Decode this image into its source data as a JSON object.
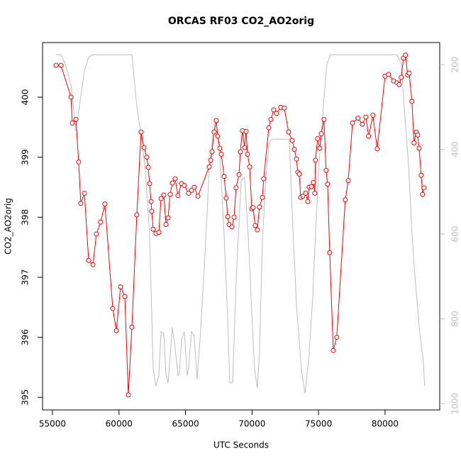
{
  "chart_data": {
    "type": "line",
    "title": "ORCAS RF03 CO2_AO2orig",
    "x_label": "UTC Seconds",
    "y_label": "CO2_AO2orig",
    "xlim": [
      54254,
      84110
    ],
    "xticks": [
      55000,
      60000,
      65000,
      70000,
      75000,
      80000
    ],
    "ylim": [
      394.79,
      400.91
    ],
    "yticks": [
      395,
      396,
      397,
      398,
      399,
      400
    ],
    "y2lim": [
      1015,
      148
    ],
    "y2ticks": [
      200,
      400,
      600,
      800,
      1000
    ],
    "series": [
      {
        "color": "#ff0000",
        "marker": "circle",
        "x": [
          55270,
          55640,
          56390,
          56490,
          56760,
          56970,
          57130,
          57400,
          57720,
          58040,
          58300,
          58620,
          58940,
          59530,
          59800,
          60120,
          60440,
          60700,
          60970,
          61340,
          61660,
          61880,
          62090,
          62200,
          62300,
          62410,
          62460,
          62570,
          62780,
          63000,
          63160,
          63370,
          63530,
          63690,
          63850,
          64010,
          64220,
          64430,
          64700,
          64910,
          65230,
          65450,
          65660,
          65930,
          66780,
          66890,
          66990,
          67150,
          67310,
          67420,
          67580,
          67690,
          67900,
          68060,
          68170,
          68270,
          68490,
          68650,
          68800,
          69020,
          69120,
          69280,
          69440,
          69550,
          69660,
          69820,
          69980,
          70080,
          70240,
          70400,
          70560,
          70780,
          70880,
          71260,
          71420,
          71630,
          71840,
          72160,
          72430,
          72750,
          73020,
          73180,
          73340,
          73440,
          73550,
          73660,
          73820,
          74030,
          74190,
          74300,
          74460,
          74610,
          74720,
          74770,
          74930,
          75090,
          75200,
          75410,
          75570,
          75680,
          75840,
          76110,
          76370,
          77010,
          77230,
          77550,
          77970,
          78290,
          78560,
          78770,
          79090,
          79410,
          80000,
          80260,
          80640,
          80900,
          81060,
          81220,
          81380,
          81540,
          81700,
          81810,
          82020,
          82180,
          82340,
          82450,
          82560,
          82720,
          82820,
          82930
        ],
        "values": [
          400.53,
          400.53,
          400.0,
          399.57,
          399.63,
          398.92,
          398.23,
          398.4,
          397.28,
          397.21,
          397.72,
          397.92,
          398.22,
          396.48,
          396.11,
          396.84,
          396.68,
          395.04,
          396.17,
          398.04,
          399.42,
          399.16,
          399.0,
          398.83,
          398.56,
          398.26,
          398.1,
          397.8,
          397.73,
          397.75,
          398.31,
          398.37,
          397.88,
          397.99,
          398.38,
          398.57,
          398.64,
          398.36,
          398.56,
          398.53,
          398.4,
          398.45,
          398.5,
          398.35,
          398.84,
          398.95,
          399.09,
          399.42,
          399.61,
          399.35,
          399.15,
          399.05,
          398.68,
          398.32,
          398.01,
          397.88,
          397.84,
          398.0,
          398.49,
          398.71,
          399.09,
          399.44,
          399.16,
          399.43,
          399.05,
          398.84,
          398.14,
          398.16,
          397.86,
          397.79,
          398.17,
          398.33,
          398.64,
          399.49,
          399.63,
          399.79,
          399.73,
          399.83,
          399.82,
          399.42,
          399.28,
          399.13,
          398.97,
          398.75,
          398.72,
          398.33,
          398.35,
          398.4,
          398.26,
          398.5,
          398.51,
          398.58,
          398.4,
          398.95,
          399.31,
          399.15,
          399.39,
          399.63,
          398.78,
          398.55,
          397.41,
          395.78,
          396.0,
          398.29,
          398.61,
          399.57,
          399.65,
          399.55,
          399.67,
          399.35,
          399.7,
          399.14,
          400.35,
          400.38,
          400.27,
          400.24,
          400.21,
          400.33,
          400.65,
          400.7,
          400.37,
          400.4,
          399.93,
          399.24,
          399.42,
          399.37,
          399.15,
          398.7,
          398.38,
          398.49
        ]
      },
      {
        "color": "#bebebe",
        "axis": "y2",
        "x": [
          55270,
          55640,
          55960,
          56390,
          56760,
          57400,
          57720,
          58040,
          60970,
          61340,
          61660,
          61980,
          62300,
          62570,
          62780,
          63000,
          63160,
          63370,
          63530,
          63690,
          63900,
          64010,
          64220,
          64430,
          64540,
          64700,
          64910,
          65130,
          65230,
          65450,
          65660,
          65870,
          66090,
          66410,
          66780,
          67050,
          67310,
          67580,
          67900,
          68170,
          68330,
          68540,
          68800,
          69180,
          69440,
          69710,
          69980,
          70190,
          70400,
          70560,
          70780,
          71040,
          71310,
          71580,
          72380,
          72800,
          73020,
          73340,
          73710,
          73980,
          74290,
          74560,
          74770,
          75040,
          75360,
          75630,
          75890,
          76110,
          80900,
          81220,
          81440,
          81760,
          82020,
          82290,
          82610,
          82880,
          82980
        ],
        "values": [
          177,
          177,
          198,
          248,
          357,
          215,
          182,
          177,
          177,
          299,
          366,
          449,
          600,
          918,
          959,
          934,
          830,
          834,
          931,
          951,
          867,
          820,
          867,
          934,
          931,
          850,
          830,
          934,
          918,
          830,
          842,
          942,
          850,
          683,
          449,
          366,
          332,
          416,
          600,
          800,
          951,
          951,
          717,
          474,
          466,
          600,
          784,
          918,
          964,
          884,
          616,
          466,
          382,
          376,
          376,
          376,
          549,
          767,
          918,
          976,
          884,
          750,
          600,
          432,
          299,
          198,
          177,
          177,
          177,
          198,
          299,
          432,
          600,
          717,
          834,
          901,
          959
        ]
      }
    ]
  }
}
